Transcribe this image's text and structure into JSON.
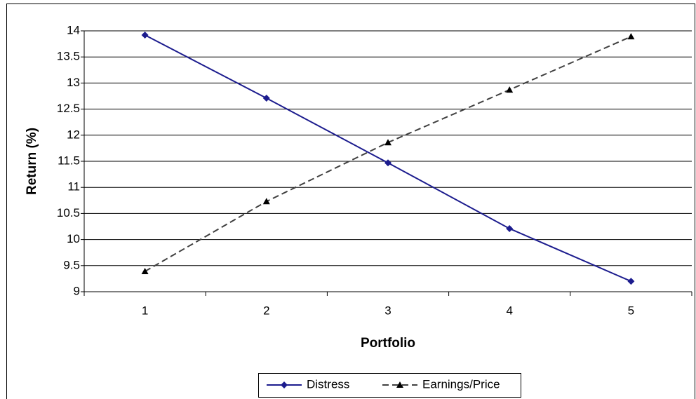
{
  "chart_data": {
    "type": "line",
    "x_label": "Portfolio",
    "y_label": "Return (%)",
    "categories": [
      "1",
      "2",
      "3",
      "4",
      "5"
    ],
    "series": [
      {
        "name": "Distress",
        "color": "#1c1c8e",
        "marker": "diamond",
        "dash": false,
        "values": [
          13.92,
          12.71,
          11.47,
          10.21,
          9.2
        ]
      },
      {
        "name": "Earnings/Price",
        "color": "#404040",
        "marker": "triangle",
        "dash": true,
        "values": [
          9.39,
          10.73,
          11.86,
          12.87,
          13.89
        ]
      }
    ],
    "ylim": [
      9,
      14
    ],
    "yticks": [
      9,
      9.5,
      10,
      10.5,
      11,
      11.5,
      12,
      12.5,
      13,
      13.5,
      14
    ],
    "grid": true,
    "legend": "bottom"
  }
}
